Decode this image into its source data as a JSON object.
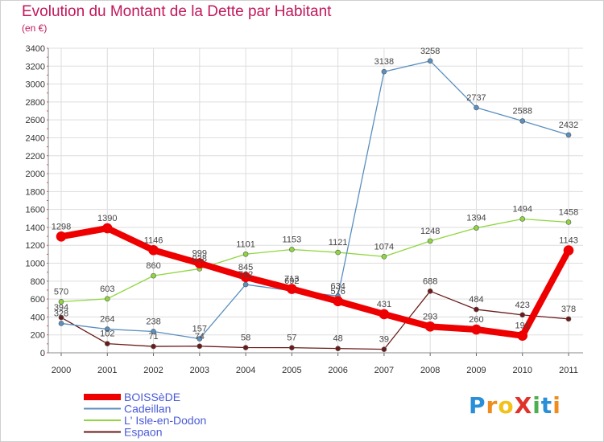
{
  "title": "Evolution du Montant de la Dette par Habitant",
  "subtitle": "(en €)",
  "logo": {
    "text": "ProXiti",
    "colors": [
      "#2a8fd6",
      "#f08c1e",
      "#f2c21a",
      "#e0312b",
      "#4caf50",
      "#2a8fd6",
      "#f08c1e"
    ]
  },
  "chart_data": {
    "type": "line",
    "x": [
      "2000",
      "2001",
      "2002",
      "2003",
      "2004",
      "2005",
      "2006",
      "2007",
      "2008",
      "2009",
      "2010",
      "2011"
    ],
    "ylim": [
      0,
      3400
    ],
    "yticks": [
      0,
      200,
      400,
      600,
      800,
      1000,
      1200,
      1400,
      1600,
      1800,
      2000,
      2200,
      2400,
      2600,
      2800,
      3000,
      3200,
      3400
    ],
    "grid": true,
    "legend_position": "bottom-left",
    "series": [
      {
        "name": "Espaon",
        "color": "#6b1a1a",
        "values": [
          394,
          102,
          71,
          74,
          58,
          57,
          48,
          39,
          688,
          484,
          423,
          378
        ]
      },
      {
        "name": "L' Isle-en-Dodon",
        "color": "#8fd63f",
        "values": [
          570,
          603,
          860,
          938,
          1101,
          1153,
          1121,
          1074,
          1248,
          1394,
          1494,
          1458
        ]
      },
      {
        "name": "Cadeillan",
        "color": "#5a8fc0",
        "values": [
          328,
          264,
          238,
          157,
          762,
          692,
          634,
          3138,
          3258,
          2737,
          2588,
          2432
        ]
      },
      {
        "name": "BOISSèDE",
        "color": "#ee0000",
        "values": [
          1298,
          1390,
          1146,
          999,
          845,
          713,
          576,
          431,
          293,
          260,
          191,
          1143
        ]
      }
    ],
    "legend_order": [
      "BOISSèDE",
      "Cadeillan",
      "L' Isle-en-Dodon",
      "Espaon"
    ]
  }
}
